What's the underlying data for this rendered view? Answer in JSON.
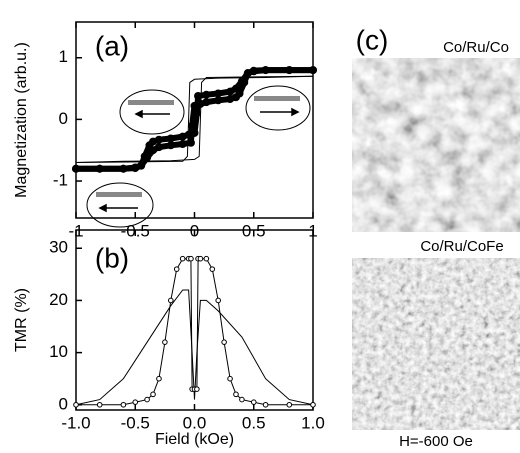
{
  "chart_data": [
    {
      "type": "line",
      "panel_label": "(a)",
      "ylabel": "Magnetization (arb.u.)",
      "xlim": [
        -1,
        1
      ],
      "xticks": [
        -1,
        -0.5,
        0,
        0.5,
        1
      ],
      "ylim": [
        -1.6,
        1.58
      ],
      "yticks": [
        -1,
        0,
        1
      ],
      "series": [
        {
          "color": "#000000",
          "marker": "filled",
          "width": 6,
          "x": [
            1,
            0.8,
            0.6,
            0.5,
            0.45,
            0.42,
            0.38,
            0.35,
            0.3,
            0.2,
            0.1,
            0.05,
            0.0,
            -0.02,
            -0.03,
            -0.1,
            -0.2,
            -0.3,
            -0.35,
            -0.4,
            -0.45,
            -0.5,
            -0.6,
            -0.8,
            -1
          ],
          "values": [
            0.8,
            0.8,
            0.8,
            0.79,
            0.75,
            0.6,
            0.42,
            0.36,
            0.33,
            0.31,
            0.28,
            0.25,
            0.22,
            -0.1,
            -0.38,
            -0.4,
            -0.42,
            -0.45,
            -0.5,
            -0.62,
            -0.75,
            -0.78,
            -0.8,
            -0.8,
            -0.8
          ]
        },
        {
          "color": "#000000",
          "marker": "filled",
          "width": 6,
          "x": [
            -1,
            -0.8,
            -0.6,
            -0.5,
            -0.45,
            -0.42,
            -0.38,
            -0.35,
            -0.3,
            -0.2,
            -0.1,
            -0.05,
            0.0,
            0.02,
            0.03,
            0.1,
            0.2,
            0.3,
            0.35,
            0.4,
            0.45,
            0.5,
            0.6,
            0.8,
            1
          ],
          "values": [
            -0.8,
            -0.8,
            -0.8,
            -0.79,
            -0.75,
            -0.6,
            -0.42,
            -0.36,
            -0.33,
            -0.31,
            -0.28,
            -0.25,
            -0.22,
            0.1,
            0.38,
            0.4,
            0.42,
            0.45,
            0.5,
            0.62,
            0.75,
            0.78,
            0.8,
            0.8,
            0.8
          ]
        },
        {
          "color": "#000000",
          "marker": "none",
          "width": 1,
          "x": [
            1,
            0.5,
            0.1,
            0.06,
            0.04,
            0.0,
            -0.2,
            -0.6,
            -1
          ],
          "values": [
            0.7,
            0.69,
            0.68,
            0.6,
            -0.6,
            -0.65,
            -0.67,
            -0.68,
            -0.7
          ]
        },
        {
          "color": "#000000",
          "marker": "none",
          "width": 1,
          "x": [
            -1,
            -0.5,
            -0.1,
            -0.06,
            -0.04,
            0.0,
            0.2,
            0.6,
            1
          ],
          "values": [
            -0.7,
            -0.69,
            -0.68,
            -0.6,
            0.6,
            0.65,
            0.67,
            0.68,
            0.7
          ]
        }
      ]
    },
    {
      "type": "line",
      "panel_label": "(b)",
      "ylabel": "TMR (%)",
      "xlabel": "Field (kOe)",
      "xlim": [
        -1,
        1
      ],
      "xticks": [
        {
          "value": -1,
          "label": "-1.0"
        },
        {
          "value": -0.5,
          "label": "-0.5"
        },
        {
          "value": 0,
          "label": "0.0"
        },
        {
          "value": 0.5,
          "label": "0.5"
        },
        {
          "value": 1,
          "label": "1.0"
        }
      ],
      "ylim": [
        -1,
        33.5
      ],
      "yticks": [
        0,
        10,
        20,
        30
      ],
      "series": [
        {
          "color": "#000000",
          "marker": "none",
          "width": 1,
          "x": [
            -1,
            -0.8,
            -0.6,
            -0.4,
            -0.2,
            -0.1,
            -0.05,
            -0.02,
            0.0,
            0.02,
            0.05,
            0.1,
            0.2,
            0.4,
            0.6,
            0.8,
            1
          ],
          "values": [
            0,
            1,
            5,
            12,
            19,
            22,
            22,
            10,
            1,
            10,
            20,
            20,
            18,
            13,
            5,
            1,
            0
          ]
        },
        {
          "color": "#000000",
          "marker": "open",
          "width": 1,
          "x": [
            -1,
            -0.8,
            -0.6,
            -0.5,
            -0.4,
            -0.35,
            -0.3,
            -0.25,
            -0.2,
            -0.15,
            -0.1,
            -0.05,
            -0.03,
            -0.02,
            0.0,
            0.02,
            0.03,
            0.05,
            0.1,
            0.15,
            0.2,
            0.25,
            0.3,
            0.35,
            0.4,
            0.5,
            0.6,
            0.8,
            1
          ],
          "values": [
            0,
            0,
            0,
            0.5,
            1,
            2,
            5,
            12,
            20,
            26,
            28,
            28,
            28,
            3,
            3,
            3,
            28,
            28,
            28,
            26,
            20,
            12,
            5,
            2,
            1,
            0.5,
            0,
            0,
            0
          ]
        }
      ]
    }
  ],
  "panel_c": {
    "label": "(c)",
    "top_caption": "Co/Ru/Co",
    "bottom_caption": "Co/Ru/CoFe",
    "field": "H=-600 Oe"
  }
}
